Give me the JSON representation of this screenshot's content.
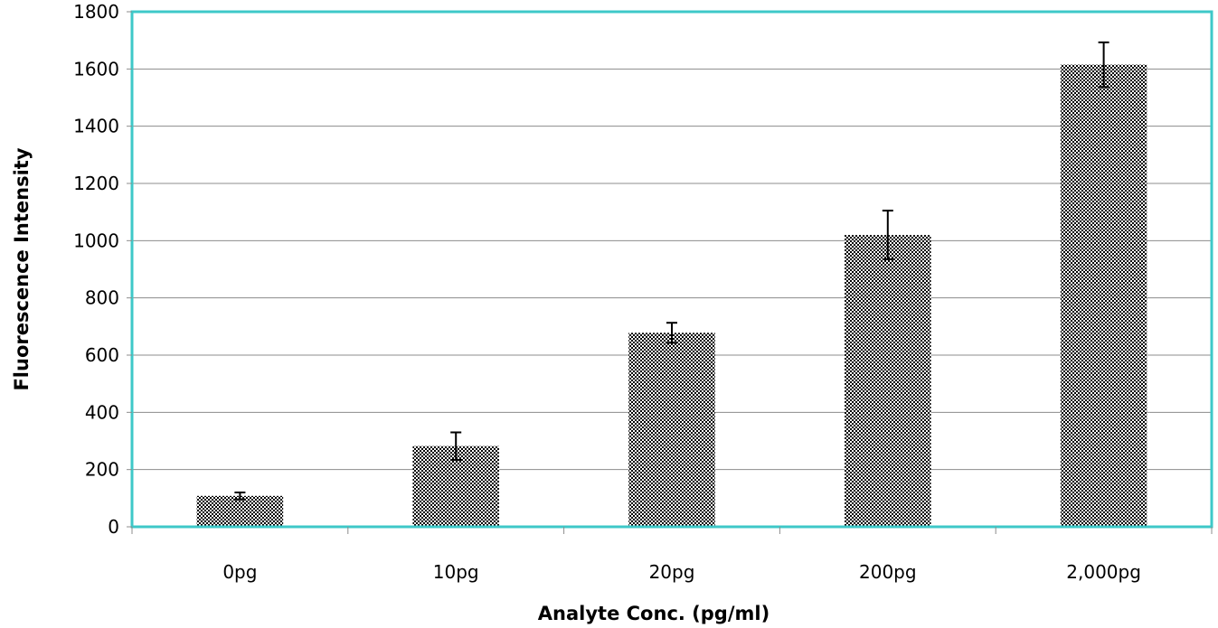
{
  "chart_data": {
    "type": "bar",
    "title": "",
    "xlabel": "Analyte Conc. (pg/ml)",
    "ylabel": "Fluorescence Intensity",
    "categories": [
      "0pg",
      "10pg",
      "20pg",
      "200pg",
      "2,000pg"
    ],
    "values": [
      108,
      282,
      678,
      1020,
      1615
    ],
    "error_plus": [
      12,
      48,
      35,
      85,
      78
    ],
    "error_minus": [
      12,
      48,
      35,
      85,
      78
    ],
    "ylim": [
      0,
      1800
    ],
    "yticks": [
      0,
      200,
      400,
      600,
      800,
      1000,
      1200,
      1400,
      1600,
      1800
    ],
    "grid": true,
    "legend": "none",
    "bar_fill": "dotted-pattern",
    "colors": {
      "plot_border": "#3ec8c8",
      "gridline": "#8c8c8c",
      "bar_dot": "#000000",
      "bar_background": "#ffffff",
      "error_bar": "#000000"
    }
  }
}
